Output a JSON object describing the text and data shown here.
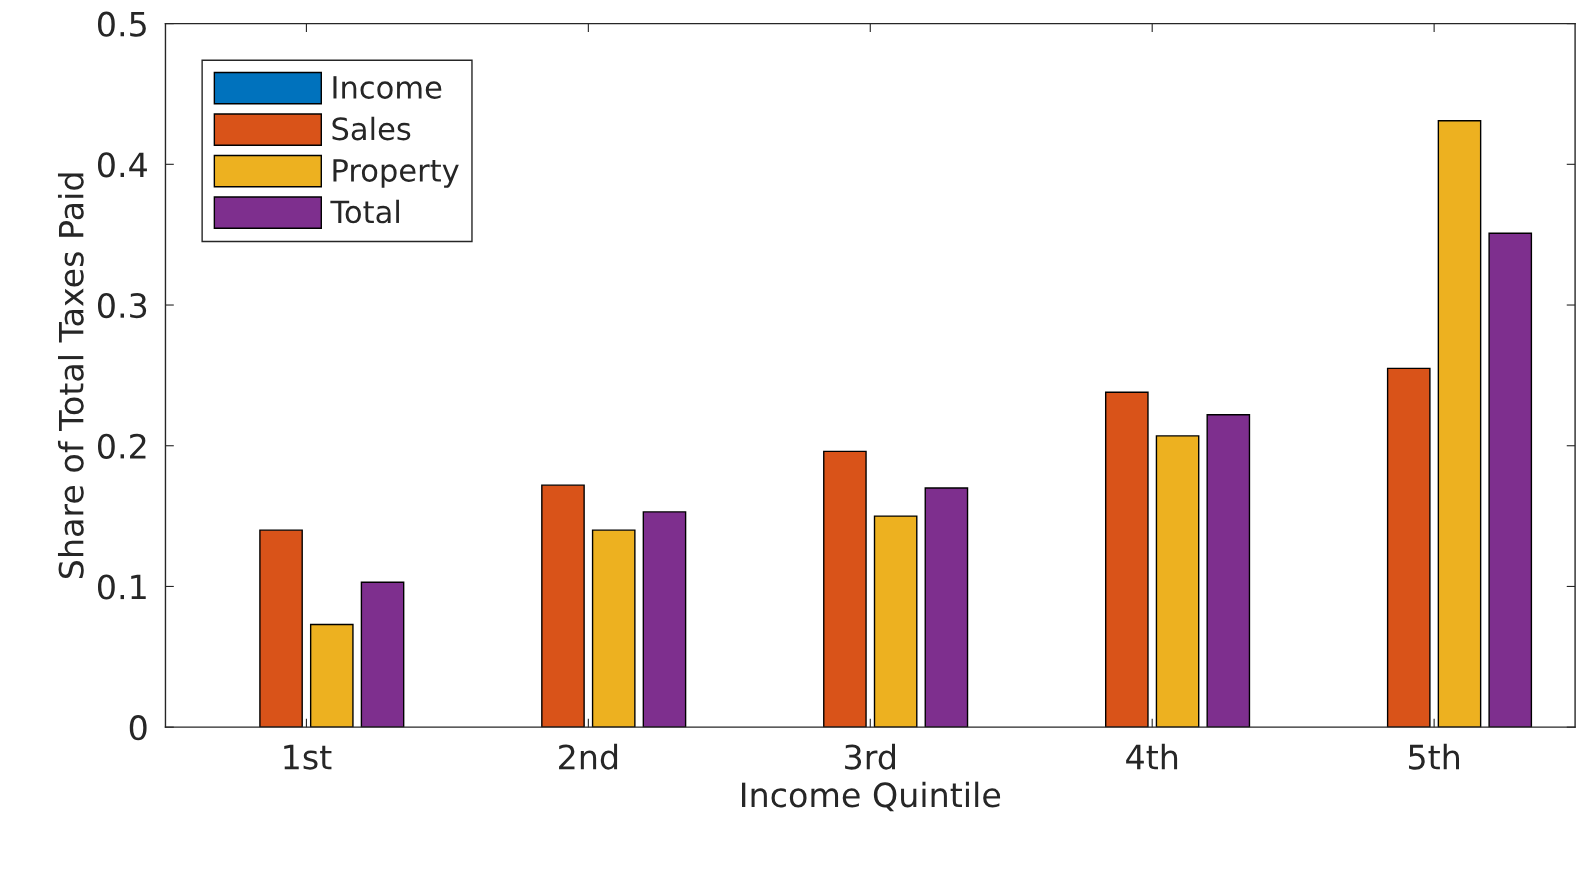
{
  "chart_data": {
    "type": "bar",
    "xlabel": "Income Quintile",
    "ylabel": "Share of Total Taxes Paid",
    "categories": [
      "1st",
      "2nd",
      "3rd",
      "4th",
      "5th"
    ],
    "series": [
      {
        "name": "Income",
        "color": "#0072bd",
        "values": [
          null,
          null,
          null,
          null,
          null
        ]
      },
      {
        "name": "Sales",
        "color": "#d95319",
        "values": [
          0.14,
          0.172,
          0.196,
          0.238,
          0.255
        ]
      },
      {
        "name": "Property",
        "color": "#edb120",
        "values": [
          0.073,
          0.14,
          0.15,
          0.207,
          0.431
        ]
      },
      {
        "name": "Total",
        "color": "#7e2f8e",
        "values": [
          0.103,
          0.153,
          0.17,
          0.222,
          0.351
        ]
      }
    ],
    "ylim": [
      0,
      0.5
    ],
    "yticks": [
      0,
      0.1,
      0.2,
      0.3,
      0.4,
      0.5
    ],
    "grid": false,
    "legend": "top left"
  }
}
